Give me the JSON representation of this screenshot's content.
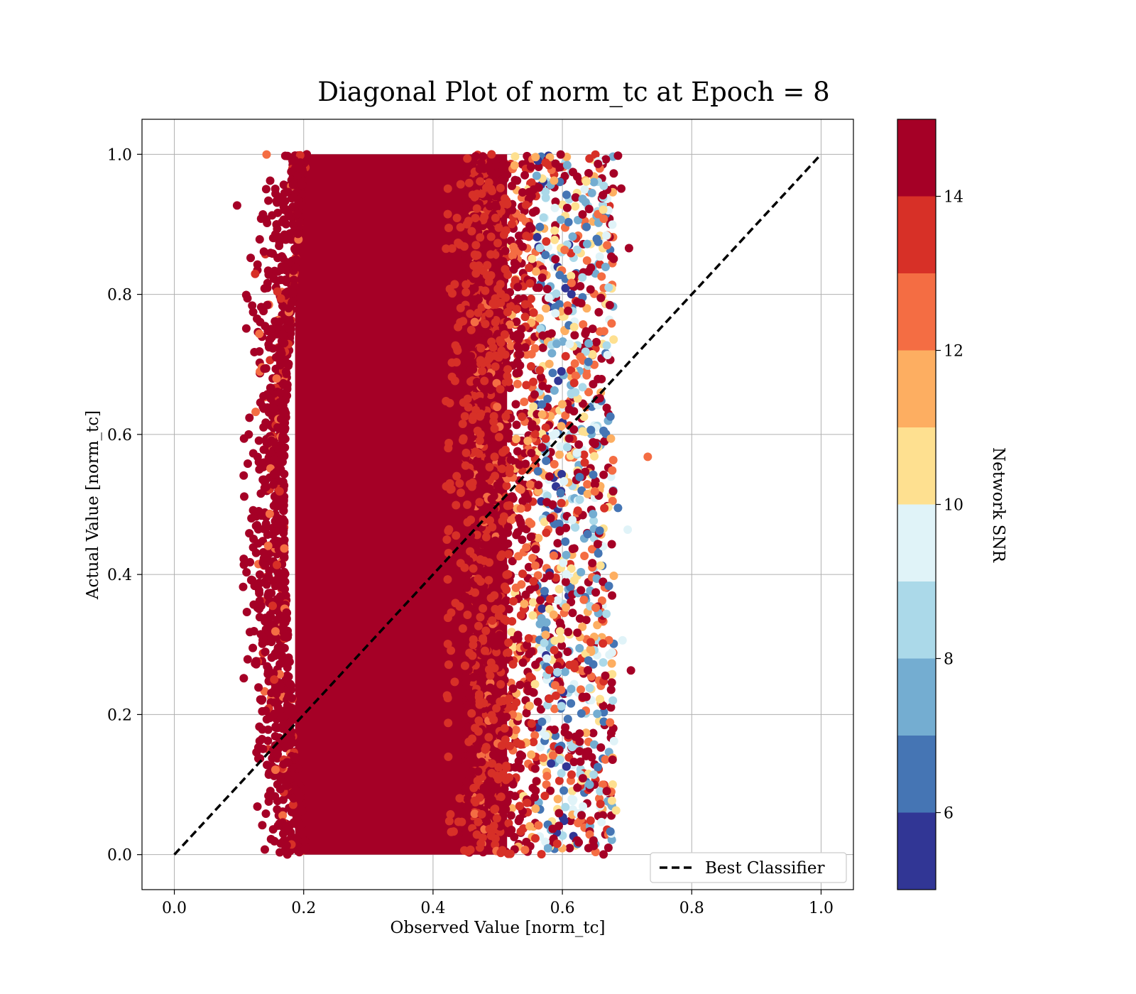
{
  "chart_data": {
    "type": "scatter",
    "title": "Diagonal Plot of norm_tc at Epoch = 8",
    "xlabel": "Observed Value [norm_tc]",
    "ylabel": "Actual Value [norm_tc]",
    "xlim": [
      -0.05,
      1.05
    ],
    "ylim": [
      -0.05,
      1.05
    ],
    "x_ticks": [
      "0.0",
      "0.2",
      "0.4",
      "0.6",
      "0.8",
      "1.0"
    ],
    "y_ticks": [
      "0.0",
      "0.2",
      "0.4",
      "0.6",
      "0.8",
      "1.0"
    ],
    "grid": true,
    "legend": {
      "placement": "lower-right",
      "entries": [
        "Best Classifier"
      ]
    },
    "reference_line": {
      "name": "Best Classifier",
      "x": [
        0.0,
        1.0
      ],
      "y": [
        0.0,
        1.0
      ],
      "style": "dashed",
      "color": "#000000"
    },
    "scatter_region": {
      "dense_x_range": [
        0.19,
        0.52
      ],
      "outer_x_range": [
        0.1,
        0.73
      ],
      "y_range": [
        0.0,
        1.0
      ],
      "dominant_snr": 15
    },
    "sample_points": [
      {
        "x": 0.097,
        "y": 0.927,
        "snr": 15
      },
      {
        "x": 0.732,
        "y": 0.568,
        "snr": 12.5
      },
      {
        "x": 0.703,
        "y": 0.866,
        "snr": 15
      },
      {
        "x": 0.706,
        "y": 0.263,
        "snr": 15
      },
      {
        "x": 0.686,
        "y": 0.998,
        "snr": 15
      },
      {
        "x": 0.691,
        "y": 0.951,
        "snr": 15
      },
      {
        "x": 0.686,
        "y": 0.495,
        "snr": 6.5
      },
      {
        "x": 0.668,
        "y": 0.884,
        "snr": 9.5
      },
      {
        "x": 0.683,
        "y": 0.063,
        "snr": 10.5
      },
      {
        "x": 0.701,
        "y": 0.464,
        "snr": 9.5
      },
      {
        "x": 0.693,
        "y": 0.306,
        "snr": 9.5
      },
      {
        "x": 0.664,
        "y": 0.955,
        "snr": 8.5
      },
      {
        "x": 0.118,
        "y": 0.852,
        "snr": 15
      },
      {
        "x": 0.115,
        "y": 0.6,
        "snr": 15
      },
      {
        "x": 0.127,
        "y": 0.146,
        "snr": 15
      },
      {
        "x": 0.136,
        "y": 0.042,
        "snr": 15
      }
    ],
    "colorbar": {
      "label": "Network SNR",
      "range": [
        5,
        15
      ],
      "ticks": [
        "6",
        "8",
        "10",
        "12",
        "14"
      ],
      "tick_values": [
        6,
        8,
        10,
        12,
        14
      ],
      "levels": [
        {
          "from": 5,
          "to": 6,
          "color": "#313695"
        },
        {
          "from": 6,
          "to": 7,
          "color": "#4575b4"
        },
        {
          "from": 7,
          "to": 8,
          "color": "#74add1"
        },
        {
          "from": 8,
          "to": 9,
          "color": "#abd9e9"
        },
        {
          "from": 9,
          "to": 10,
          "color": "#e0f3f8"
        },
        {
          "from": 10,
          "to": 11,
          "color": "#fee090"
        },
        {
          "from": 11,
          "to": 12,
          "color": "#fdae61"
        },
        {
          "from": 12,
          "to": 13,
          "color": "#f46d43"
        },
        {
          "from": 13,
          "to": 14,
          "color": "#d73027"
        },
        {
          "from": 14,
          "to": 15,
          "color": "#a50026"
        }
      ]
    }
  }
}
